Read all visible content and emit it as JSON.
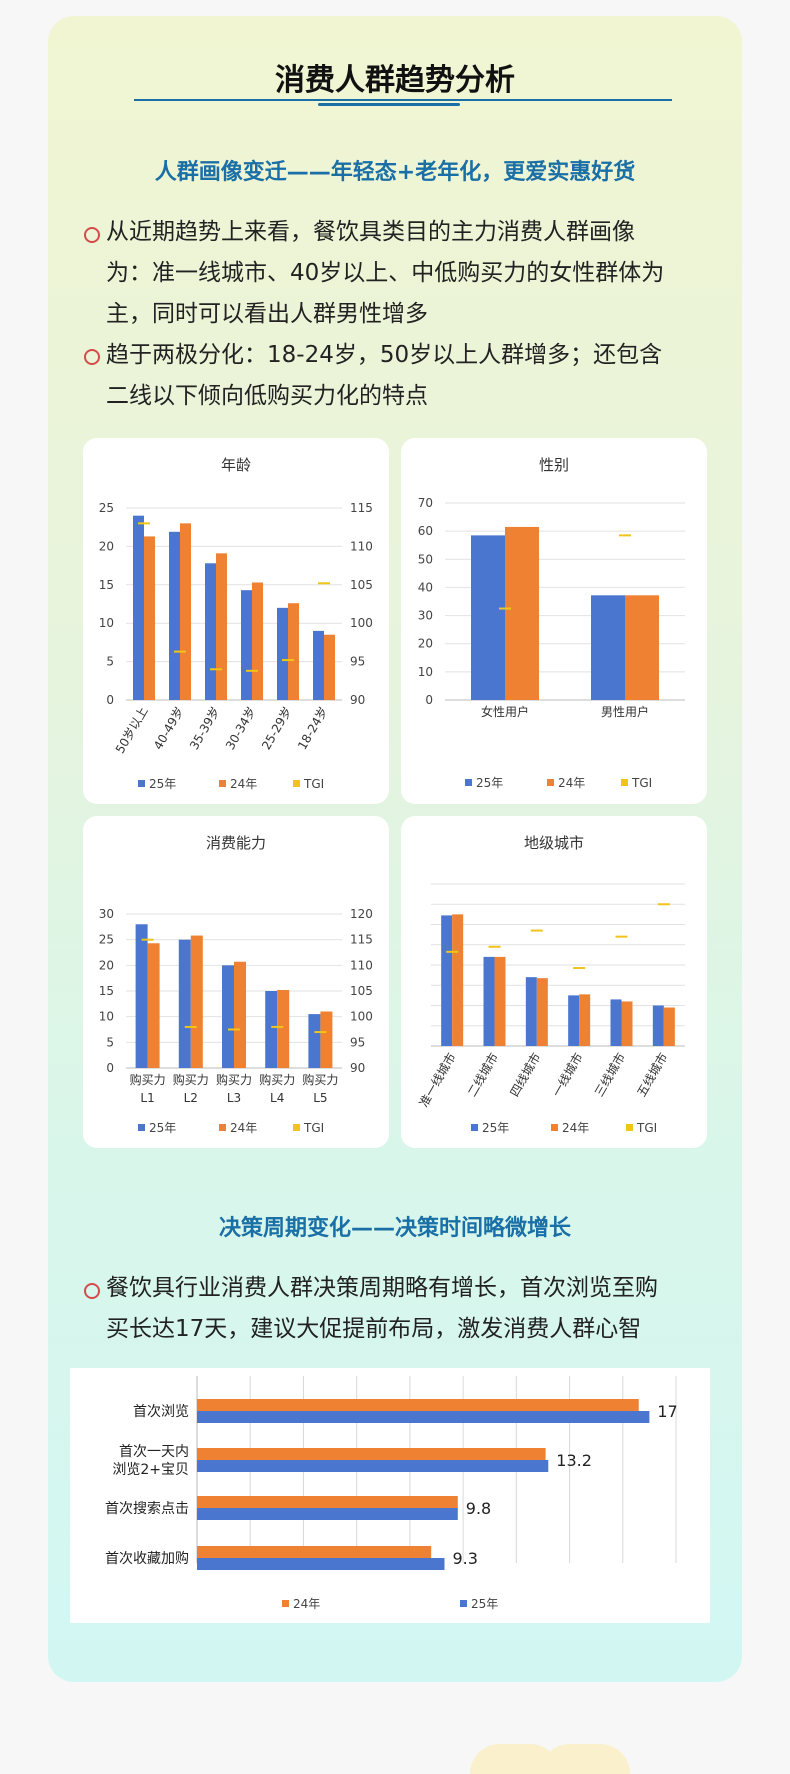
{
  "page": {
    "title": "消费人群趋势分析",
    "section1_title": "人群画像变迁——年轻态+老年化，更爱实惠好货",
    "bullet1_lines": [
      "从近期趋势上来看，餐饮具类目的主力消费人群画像",
      "为：准一线城市、40岁以上、中低购买力的女性群体为",
      "主，同时可以看出人群男性增多"
    ],
    "bullet2_lines": [
      "趋于两极分化：18-24岁，50岁以上人群增多；还包含",
      "二线以下倾向低购买力化的特点"
    ],
    "section2_title": "决策周期变化——决策时间略微增长",
    "bullet3_lines": [
      "餐饮具行业消费人群决策周期略有增长，首次浏览至购",
      "买长达17天，建议大促提前布局，激发消费人群心智"
    ]
  },
  "colors": {
    "s25": "#4a76cf",
    "s24": "#ee8132",
    "tgi": "#f0c419",
    "accent": "#1a6fa6",
    "bullet": "#d44b4b"
  },
  "chart_data": [
    {
      "type": "bar",
      "title": "年龄",
      "categories": [
        "50岁以上",
        "40-49岁",
        "35-39岁",
        "30-34岁",
        "25-29岁",
        "18-24岁"
      ],
      "series": [
        {
          "name": "25年",
          "values": [
            24,
            21.9,
            17.8,
            14.3,
            12,
            9
          ]
        },
        {
          "name": "24年",
          "values": [
            21.3,
            23,
            19.1,
            15.3,
            12.6,
            8.5
          ]
        },
        {
          "name": "TGI",
          "axis": "right",
          "values": [
            113,
            96.3,
            94,
            93.8,
            95.2,
            105.2
          ]
        }
      ],
      "ylim": [
        0,
        25
      ],
      "yticks": [
        0,
        5,
        10,
        15,
        20,
        25
      ],
      "y2lim": [
        90,
        115
      ],
      "y2ticks": [
        90,
        95,
        100,
        105,
        110,
        115
      ]
    },
    {
      "type": "bar",
      "title": "性别",
      "categories": [
        "女性用户",
        "男性用户"
      ],
      "series": [
        {
          "name": "25年",
          "values": [
            58.5,
            37.2
          ]
        },
        {
          "name": "24年",
          "values": [
            61.5,
            37.2
          ]
        },
        {
          "name": "TGI",
          "axis": "left",
          "values": [
            32.5,
            58.5
          ]
        }
      ],
      "ylim": [
        0,
        70
      ],
      "yticks": [
        0,
        10,
        20,
        30,
        40,
        50,
        60,
        70
      ]
    },
    {
      "type": "bar",
      "title": "消费能力",
      "categories": [
        "购买力L1",
        "购买力L2",
        "购买力L3",
        "购买力L4",
        "购买力L5"
      ],
      "series": [
        {
          "name": "25年",
          "values": [
            28,
            25,
            20,
            15,
            10.5
          ]
        },
        {
          "name": "24年",
          "values": [
            24.3,
            25.8,
            20.7,
            15.2,
            11
          ]
        },
        {
          "name": "TGI",
          "axis": "right",
          "values": [
            115,
            98,
            97.5,
            98,
            97
          ]
        }
      ],
      "ylim": [
        0,
        30
      ],
      "yticks": [
        0,
        5,
        10,
        15,
        20,
        25,
        30
      ],
      "y2lim": [
        90,
        120
      ],
      "y2ticks": [
        90,
        95,
        100,
        105,
        110,
        115,
        120
      ]
    },
    {
      "type": "bar",
      "title": "地级城市",
      "categories": [
        "准一线城市",
        "二线城市",
        "四线城市",
        "一线城市",
        "三线城市",
        "五线城市"
      ],
      "series": [
        {
          "name": "25年",
          "values": [
            12.9,
            8.8,
            6.8,
            5,
            4.6,
            4
          ]
        },
        {
          "name": "24年",
          "values": [
            13,
            8.8,
            6.7,
            5.1,
            4.4,
            3.8
          ]
        },
        {
          "name": "TGI",
          "axis": "left",
          "values": [
            9.3,
            9.8,
            11.4,
            7.7,
            10.8,
            14
          ]
        }
      ],
      "ylim": [
        0,
        16
      ]
    },
    {
      "type": "bar",
      "orientation": "horizontal",
      "categories": [
        "首次浏览",
        "首次一天内浏览2+宝贝",
        "首次搜索点击",
        "首次收藏加购"
      ],
      "category_lines": [
        [
          "首次浏览"
        ],
        [
          "首次一天内",
          "浏览2+宝贝"
        ],
        [
          "首次搜索点击"
        ],
        [
          "首次收藏加购"
        ]
      ],
      "series": [
        {
          "name": "24年",
          "values": [
            16.6,
            13.1,
            9.8,
            8.8
          ]
        },
        {
          "name": "25年",
          "values": [
            17,
            13.2,
            9.8,
            9.3
          ]
        }
      ],
      "data_labels": [
        "17",
        "13.2",
        "9.8",
        "9.3"
      ],
      "xlim": [
        0,
        18
      ]
    }
  ]
}
